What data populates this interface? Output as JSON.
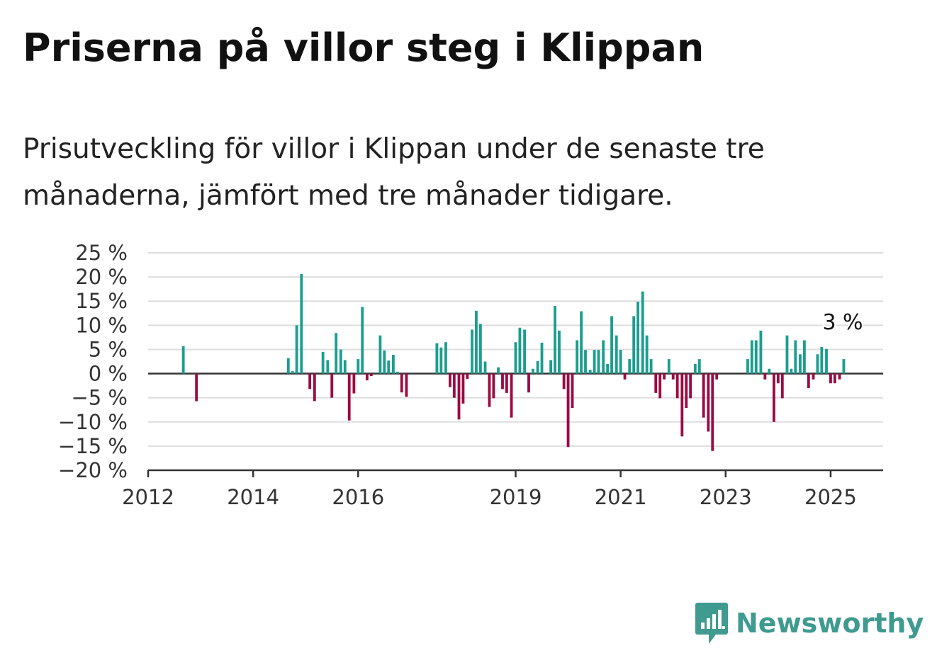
{
  "title": "Priserna på villor steg i Klippan",
  "subtitle": "Prisutveckling för villor i Klippan under de senaste tre månaderna, jämfört med tre månader tidigare.",
  "brand": "Newsworthy",
  "colors": {
    "positive": "#1a9e8f",
    "negative": "#9c0a42",
    "grid": "#dddddd",
    "zero": "#333333",
    "brand": "#3f9a8f"
  },
  "chart_data": {
    "type": "bar",
    "x_unit": "year (decimal)",
    "xlim": [
      2012,
      2026
    ],
    "ylim": [
      -20,
      25
    ],
    "yticks": [
      25,
      20,
      15,
      10,
      5,
      0,
      -5,
      -10,
      -15,
      -20
    ],
    "ytick_labels": [
      "25 %",
      "20 %",
      "15 %",
      "10 %",
      "5 %",
      "0 %",
      "−5 %",
      "−10 %",
      "−15 %",
      "−20 %"
    ],
    "xticks": [
      2012,
      2014,
      2016,
      2019,
      2021,
      2023,
      2025
    ],
    "xtick_labels": [
      "2012",
      "2014",
      "2016",
      "2019",
      "2021",
      "2023",
      "2025"
    ],
    "grid": true,
    "annotation": {
      "text": "3 %",
      "x": 2025.25,
      "y": 3
    },
    "points": [
      [
        2012.67,
        5.7
      ],
      [
        2012.92,
        -5.7
      ],
      [
        2014.67,
        3.2
      ],
      [
        2014.75,
        0.5
      ],
      [
        2014.83,
        10
      ],
      [
        2014.92,
        20.6
      ],
      [
        2015.08,
        -3.2
      ],
      [
        2015.17,
        -5.7
      ],
      [
        2015.33,
        4.5
      ],
      [
        2015.42,
        2.8
      ],
      [
        2015.5,
        -5
      ],
      [
        2015.58,
        8.4
      ],
      [
        2015.67,
        5
      ],
      [
        2015.75,
        2.8
      ],
      [
        2015.83,
        -9.7
      ],
      [
        2015.92,
        -4.1
      ],
      [
        2016.0,
        3
      ],
      [
        2016.08,
        13.8
      ],
      [
        2016.17,
        -1.4
      ],
      [
        2016.25,
        -0.5
      ],
      [
        2016.42,
        7.9
      ],
      [
        2016.5,
        4.8
      ],
      [
        2016.58,
        2.7
      ],
      [
        2016.67,
        3.9
      ],
      [
        2016.75,
        0.4
      ],
      [
        2016.83,
        -3.9
      ],
      [
        2016.92,
        -4.8
      ],
      [
        2017.5,
        6.3
      ],
      [
        2017.58,
        5.4
      ],
      [
        2017.67,
        6.5
      ],
      [
        2017.75,
        -2.8
      ],
      [
        2017.83,
        -5
      ],
      [
        2017.92,
        -9.5
      ],
      [
        2018.0,
        -6.2
      ],
      [
        2018.08,
        -1.1
      ],
      [
        2018.17,
        9.1
      ],
      [
        2018.25,
        13
      ],
      [
        2018.33,
        10.3
      ],
      [
        2018.42,
        2.5
      ],
      [
        2018.5,
        -6.9
      ],
      [
        2018.58,
        -5.1
      ],
      [
        2018.67,
        1.3
      ],
      [
        2018.75,
        -3.2
      ],
      [
        2018.83,
        -4
      ],
      [
        2018.92,
        -9.1
      ],
      [
        2019.0,
        6.5
      ],
      [
        2019.08,
        9.5
      ],
      [
        2019.17,
        9.1
      ],
      [
        2019.25,
        -3.9
      ],
      [
        2019.33,
        1
      ],
      [
        2019.42,
        2.6
      ],
      [
        2019.5,
        6.4
      ],
      [
        2019.67,
        2.8
      ],
      [
        2019.75,
        14
      ],
      [
        2019.83,
        8.9
      ],
      [
        2019.92,
        -3.2
      ],
      [
        2020.0,
        -15.2
      ],
      [
        2020.08,
        -7.1
      ],
      [
        2020.17,
        6.9
      ],
      [
        2020.25,
        12.9
      ],
      [
        2020.33,
        4.9
      ],
      [
        2020.42,
        0.8
      ],
      [
        2020.5,
        4.9
      ],
      [
        2020.58,
        4.9
      ],
      [
        2020.67,
        6.9
      ],
      [
        2020.75,
        2
      ],
      [
        2020.83,
        11.9
      ],
      [
        2020.92,
        7.9
      ],
      [
        2021.0,
        4.9
      ],
      [
        2021.08,
        -1.2
      ],
      [
        2021.17,
        3
      ],
      [
        2021.25,
        11.9
      ],
      [
        2021.33,
        14.9
      ],
      [
        2021.42,
        17
      ],
      [
        2021.5,
        7.9
      ],
      [
        2021.58,
        3
      ],
      [
        2021.67,
        -4
      ],
      [
        2021.75,
        -5.1
      ],
      [
        2021.83,
        -1.2
      ],
      [
        2021.92,
        3
      ],
      [
        2022.0,
        -1.2
      ],
      [
        2022.08,
        -5.1
      ],
      [
        2022.17,
        -13
      ],
      [
        2022.25,
        -7.1
      ],
      [
        2022.33,
        -5.1
      ],
      [
        2022.42,
        2
      ],
      [
        2022.5,
        3
      ],
      [
        2022.58,
        -9.1
      ],
      [
        2022.67,
        -12
      ],
      [
        2022.75,
        -16
      ],
      [
        2022.83,
        -1.2
      ],
      [
        2023.42,
        3
      ],
      [
        2023.5,
        6.9
      ],
      [
        2023.58,
        6.9
      ],
      [
        2023.67,
        8.9
      ],
      [
        2023.75,
        -1.2
      ],
      [
        2023.83,
        1
      ],
      [
        2023.92,
        -10
      ],
      [
        2024.0,
        -2
      ],
      [
        2024.08,
        -5.1
      ],
      [
        2024.17,
        7.9
      ],
      [
        2024.25,
        1
      ],
      [
        2024.33,
        6.9
      ],
      [
        2024.42,
        4
      ],
      [
        2024.5,
        6.9
      ],
      [
        2024.58,
        -3
      ],
      [
        2024.67,
        -1.2
      ],
      [
        2024.75,
        4
      ],
      [
        2024.83,
        5.5
      ],
      [
        2024.92,
        5.1
      ],
      [
        2025.0,
        -2
      ],
      [
        2025.08,
        -2
      ],
      [
        2025.17,
        -1.2
      ],
      [
        2025.25,
        3
      ]
    ]
  }
}
